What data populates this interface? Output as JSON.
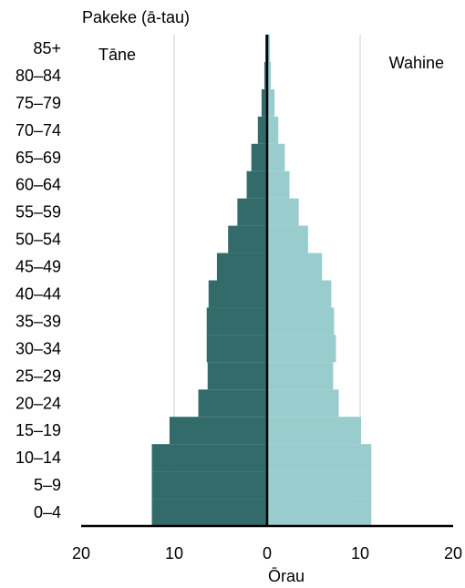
{
  "chart_data": {
    "type": "bar",
    "orientation": "horizontal-population-pyramid",
    "ylabel": "Pakeke (ā-tau)",
    "xlabel": "Ōrau",
    "categories": [
      "0–4",
      "5–9",
      "10–14",
      "15–19",
      "20–24",
      "25–29",
      "30–34",
      "35–39",
      "40–44",
      "45–49",
      "50–54",
      "55–59",
      "60–64",
      "65–69",
      "70–74",
      "75–79",
      "80–84",
      "85+"
    ],
    "series": [
      {
        "name": "Tāne",
        "side": "left",
        "color": "#336b6b",
        "values": [
          12.4,
          12.4,
          12.4,
          10.5,
          7.4,
          6.4,
          6.5,
          6.5,
          6.3,
          5.4,
          4.2,
          3.2,
          2.2,
          1.7,
          1.0,
          0.6,
          0.3,
          0.2
        ]
      },
      {
        "name": "Wahine",
        "side": "right",
        "color": "#99cccc",
        "values": [
          11.2,
          11.2,
          11.2,
          10.1,
          7.7,
          7.1,
          7.4,
          7.2,
          6.9,
          5.9,
          4.4,
          3.4,
          2.4,
          1.9,
          1.2,
          0.8,
          0.4,
          0.3
        ]
      }
    ],
    "xlim": [
      -20,
      20
    ],
    "xticks": [
      -20,
      -10,
      0,
      10,
      20
    ],
    "xtick_labels": [
      "20",
      "10",
      "0",
      "10",
      "20"
    ],
    "grid": true,
    "annotations": [
      {
        "text": "Tāne",
        "position": "top-left"
      },
      {
        "text": "Wahine",
        "position": "top-right"
      }
    ]
  }
}
